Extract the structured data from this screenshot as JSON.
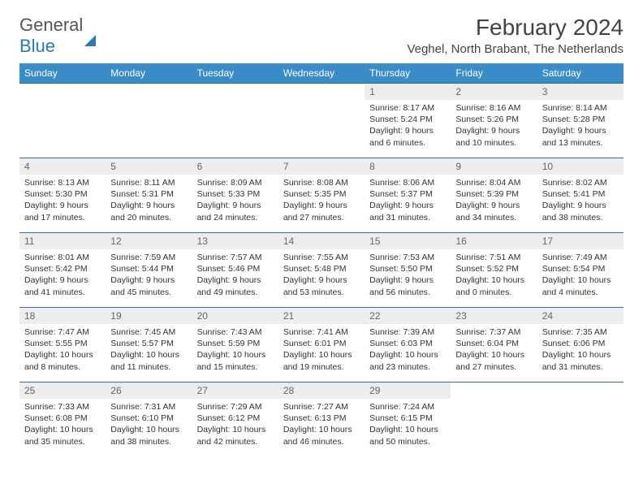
{
  "brand": {
    "part1": "General",
    "part2": "Blue"
  },
  "title": "February 2024",
  "location": "Veghel, North Brabant, The Netherlands",
  "colors": {
    "header_bg": "#3a8cc9",
    "header_text": "#ffffff",
    "daynum_bg": "#ededed",
    "cell_border": "#3a6a9a",
    "logo_blue": "#2a7ab8"
  },
  "typography": {
    "title_fontsize": 28,
    "location_fontsize": 15,
    "header_fontsize": 12,
    "daynum_fontsize": 12,
    "body_fontsize": 10.5
  },
  "weekdays": [
    "Sunday",
    "Monday",
    "Tuesday",
    "Wednesday",
    "Thursday",
    "Friday",
    "Saturday"
  ],
  "weeks": [
    [
      null,
      null,
      null,
      null,
      {
        "n": "1",
        "sr": "Sunrise: 8:17 AM",
        "ss": "Sunset: 5:24 PM",
        "d1": "Daylight: 9 hours",
        "d2": "and 6 minutes."
      },
      {
        "n": "2",
        "sr": "Sunrise: 8:16 AM",
        "ss": "Sunset: 5:26 PM",
        "d1": "Daylight: 9 hours",
        "d2": "and 10 minutes."
      },
      {
        "n": "3",
        "sr": "Sunrise: 8:14 AM",
        "ss": "Sunset: 5:28 PM",
        "d1": "Daylight: 9 hours",
        "d2": "and 13 minutes."
      }
    ],
    [
      {
        "n": "4",
        "sr": "Sunrise: 8:13 AM",
        "ss": "Sunset: 5:30 PM",
        "d1": "Daylight: 9 hours",
        "d2": "and 17 minutes."
      },
      {
        "n": "5",
        "sr": "Sunrise: 8:11 AM",
        "ss": "Sunset: 5:31 PM",
        "d1": "Daylight: 9 hours",
        "d2": "and 20 minutes."
      },
      {
        "n": "6",
        "sr": "Sunrise: 8:09 AM",
        "ss": "Sunset: 5:33 PM",
        "d1": "Daylight: 9 hours",
        "d2": "and 24 minutes."
      },
      {
        "n": "7",
        "sr": "Sunrise: 8:08 AM",
        "ss": "Sunset: 5:35 PM",
        "d1": "Daylight: 9 hours",
        "d2": "and 27 minutes."
      },
      {
        "n": "8",
        "sr": "Sunrise: 8:06 AM",
        "ss": "Sunset: 5:37 PM",
        "d1": "Daylight: 9 hours",
        "d2": "and 31 minutes."
      },
      {
        "n": "9",
        "sr": "Sunrise: 8:04 AM",
        "ss": "Sunset: 5:39 PM",
        "d1": "Daylight: 9 hours",
        "d2": "and 34 minutes."
      },
      {
        "n": "10",
        "sr": "Sunrise: 8:02 AM",
        "ss": "Sunset: 5:41 PM",
        "d1": "Daylight: 9 hours",
        "d2": "and 38 minutes."
      }
    ],
    [
      {
        "n": "11",
        "sr": "Sunrise: 8:01 AM",
        "ss": "Sunset: 5:42 PM",
        "d1": "Daylight: 9 hours",
        "d2": "and 41 minutes."
      },
      {
        "n": "12",
        "sr": "Sunrise: 7:59 AM",
        "ss": "Sunset: 5:44 PM",
        "d1": "Daylight: 9 hours",
        "d2": "and 45 minutes."
      },
      {
        "n": "13",
        "sr": "Sunrise: 7:57 AM",
        "ss": "Sunset: 5:46 PM",
        "d1": "Daylight: 9 hours",
        "d2": "and 49 minutes."
      },
      {
        "n": "14",
        "sr": "Sunrise: 7:55 AM",
        "ss": "Sunset: 5:48 PM",
        "d1": "Daylight: 9 hours",
        "d2": "and 53 minutes."
      },
      {
        "n": "15",
        "sr": "Sunrise: 7:53 AM",
        "ss": "Sunset: 5:50 PM",
        "d1": "Daylight: 9 hours",
        "d2": "and 56 minutes."
      },
      {
        "n": "16",
        "sr": "Sunrise: 7:51 AM",
        "ss": "Sunset: 5:52 PM",
        "d1": "Daylight: 10 hours",
        "d2": "and 0 minutes."
      },
      {
        "n": "17",
        "sr": "Sunrise: 7:49 AM",
        "ss": "Sunset: 5:54 PM",
        "d1": "Daylight: 10 hours",
        "d2": "and 4 minutes."
      }
    ],
    [
      {
        "n": "18",
        "sr": "Sunrise: 7:47 AM",
        "ss": "Sunset: 5:55 PM",
        "d1": "Daylight: 10 hours",
        "d2": "and 8 minutes."
      },
      {
        "n": "19",
        "sr": "Sunrise: 7:45 AM",
        "ss": "Sunset: 5:57 PM",
        "d1": "Daylight: 10 hours",
        "d2": "and 11 minutes."
      },
      {
        "n": "20",
        "sr": "Sunrise: 7:43 AM",
        "ss": "Sunset: 5:59 PM",
        "d1": "Daylight: 10 hours",
        "d2": "and 15 minutes."
      },
      {
        "n": "21",
        "sr": "Sunrise: 7:41 AM",
        "ss": "Sunset: 6:01 PM",
        "d1": "Daylight: 10 hours",
        "d2": "and 19 minutes."
      },
      {
        "n": "22",
        "sr": "Sunrise: 7:39 AM",
        "ss": "Sunset: 6:03 PM",
        "d1": "Daylight: 10 hours",
        "d2": "and 23 minutes."
      },
      {
        "n": "23",
        "sr": "Sunrise: 7:37 AM",
        "ss": "Sunset: 6:04 PM",
        "d1": "Daylight: 10 hours",
        "d2": "and 27 minutes."
      },
      {
        "n": "24",
        "sr": "Sunrise: 7:35 AM",
        "ss": "Sunset: 6:06 PM",
        "d1": "Daylight: 10 hours",
        "d2": "and 31 minutes."
      }
    ],
    [
      {
        "n": "25",
        "sr": "Sunrise: 7:33 AM",
        "ss": "Sunset: 6:08 PM",
        "d1": "Daylight: 10 hours",
        "d2": "and 35 minutes."
      },
      {
        "n": "26",
        "sr": "Sunrise: 7:31 AM",
        "ss": "Sunset: 6:10 PM",
        "d1": "Daylight: 10 hours",
        "d2": "and 38 minutes."
      },
      {
        "n": "27",
        "sr": "Sunrise: 7:29 AM",
        "ss": "Sunset: 6:12 PM",
        "d1": "Daylight: 10 hours",
        "d2": "and 42 minutes."
      },
      {
        "n": "28",
        "sr": "Sunrise: 7:27 AM",
        "ss": "Sunset: 6:13 PM",
        "d1": "Daylight: 10 hours",
        "d2": "and 46 minutes."
      },
      {
        "n": "29",
        "sr": "Sunrise: 7:24 AM",
        "ss": "Sunset: 6:15 PM",
        "d1": "Daylight: 10 hours",
        "d2": "and 50 minutes."
      },
      null,
      null
    ]
  ]
}
